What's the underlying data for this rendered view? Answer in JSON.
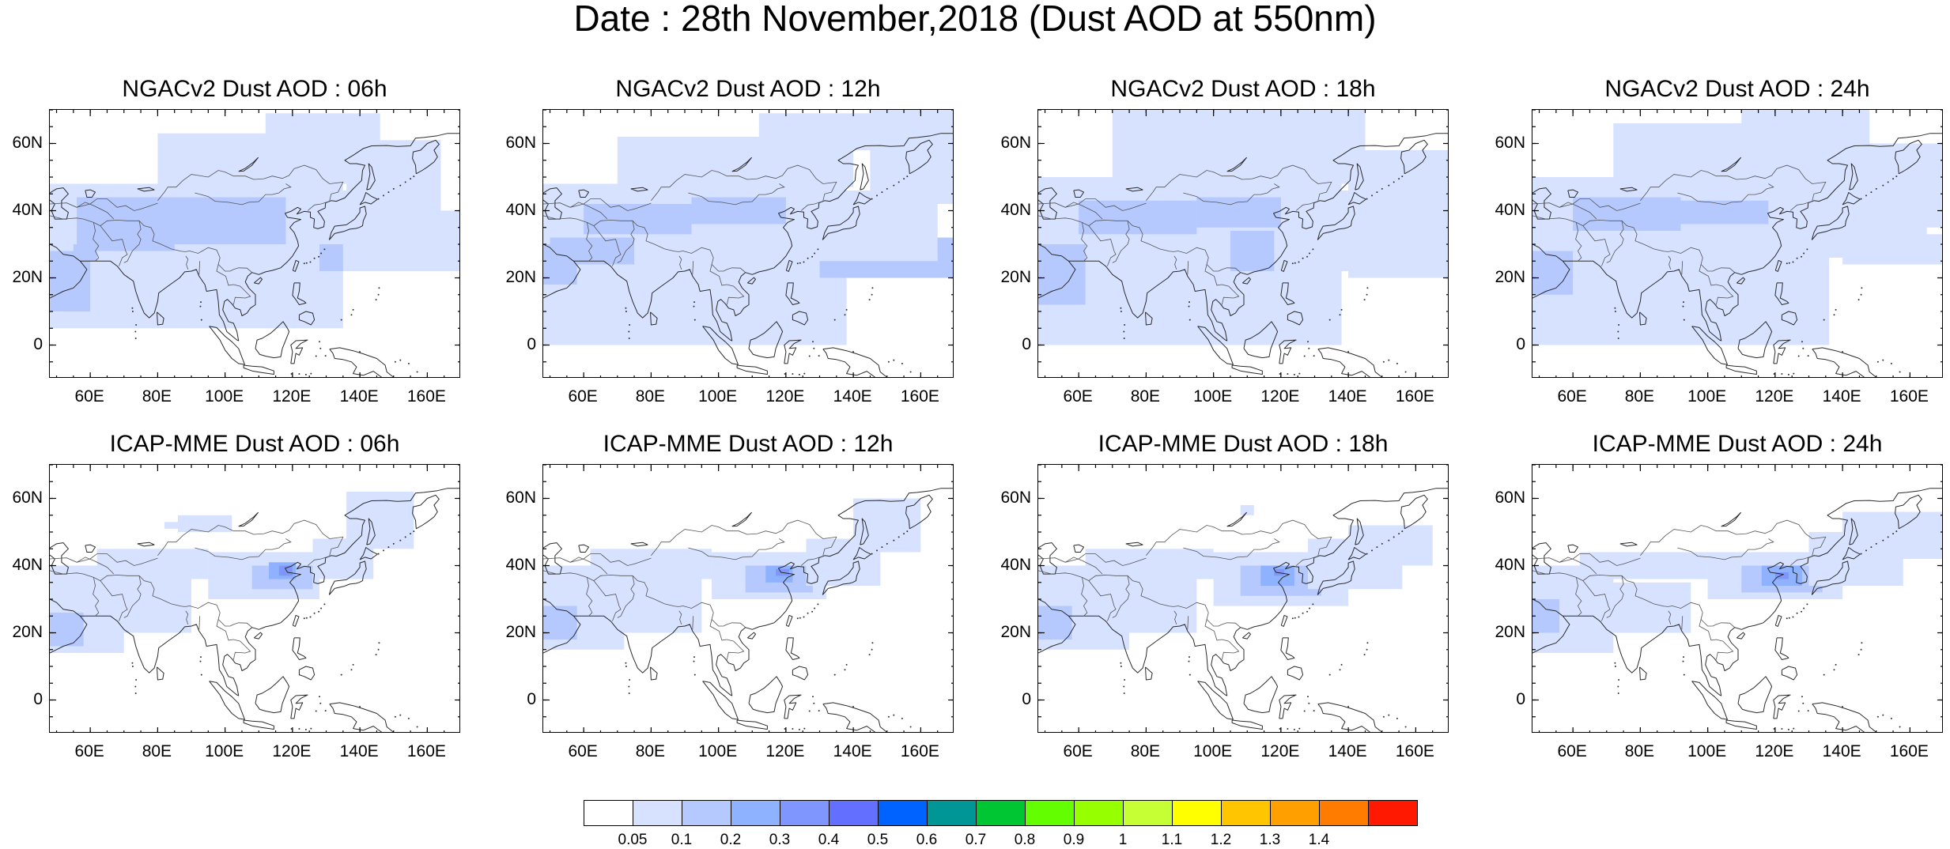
{
  "title": "Date : 28th November,2018 (Dust AOD at 550nm)",
  "panels": [
    {
      "title": "NGACv2 Dust AOD : 06h",
      "model": "NGACv2",
      "hour": "06h"
    },
    {
      "title": "NGACv2 Dust AOD : 12h",
      "model": "NGACv2",
      "hour": "12h"
    },
    {
      "title": "NGACv2 Dust AOD : 18h",
      "model": "NGACv2",
      "hour": "18h"
    },
    {
      "title": "NGACv2 Dust AOD : 24h",
      "model": "NGACv2",
      "hour": "24h"
    },
    {
      "title": "ICAP-MME Dust AOD : 06h",
      "model": "ICAP-MME",
      "hour": "06h"
    },
    {
      "title": "ICAP-MME Dust AOD : 12h",
      "model": "ICAP-MME",
      "hour": "12h"
    },
    {
      "title": "ICAP-MME Dust AOD : 18h",
      "model": "ICAP-MME",
      "hour": "18h"
    },
    {
      "title": "ICAP-MME Dust AOD : 24h",
      "model": "ICAP-MME",
      "hour": "24h"
    }
  ],
  "map": {
    "lon_range": [
      48,
      170
    ],
    "lat_range": [
      -10,
      70
    ],
    "lat_ticks": [
      {
        "value": 60,
        "label": "60N"
      },
      {
        "value": 40,
        "label": "40N"
      },
      {
        "value": 20,
        "label": "20N"
      },
      {
        "value": 0,
        "label": "0"
      }
    ],
    "lon_ticks": [
      {
        "value": 60,
        "label": "60E"
      },
      {
        "value": 80,
        "label": "80E"
      },
      {
        "value": 100,
        "label": "100E"
      },
      {
        "value": 120,
        "label": "120E"
      },
      {
        "value": 140,
        "label": "140E"
      },
      {
        "value": 160,
        "label": "160E"
      }
    ]
  },
  "colorbar": {
    "colors": [
      "#ffffff",
      "#d6e2ff",
      "#b5c9ff",
      "#8eb2ff",
      "#7f96ff",
      "#6370ff",
      "#0063ff",
      "#009696",
      "#00c633",
      "#63ff00",
      "#96ff00",
      "#c6ff33",
      "#ffff00",
      "#ffc600",
      "#ffa000",
      "#ff7c00",
      "#ff1900"
    ],
    "labels": [
      "0.05",
      "0.1",
      "0.2",
      "0.3",
      "0.4",
      "0.5",
      "0.6",
      "0.7",
      "0.8",
      "0.9",
      "1",
      "1.1",
      "1.2",
      "1.3",
      "1.4"
    ]
  }
}
